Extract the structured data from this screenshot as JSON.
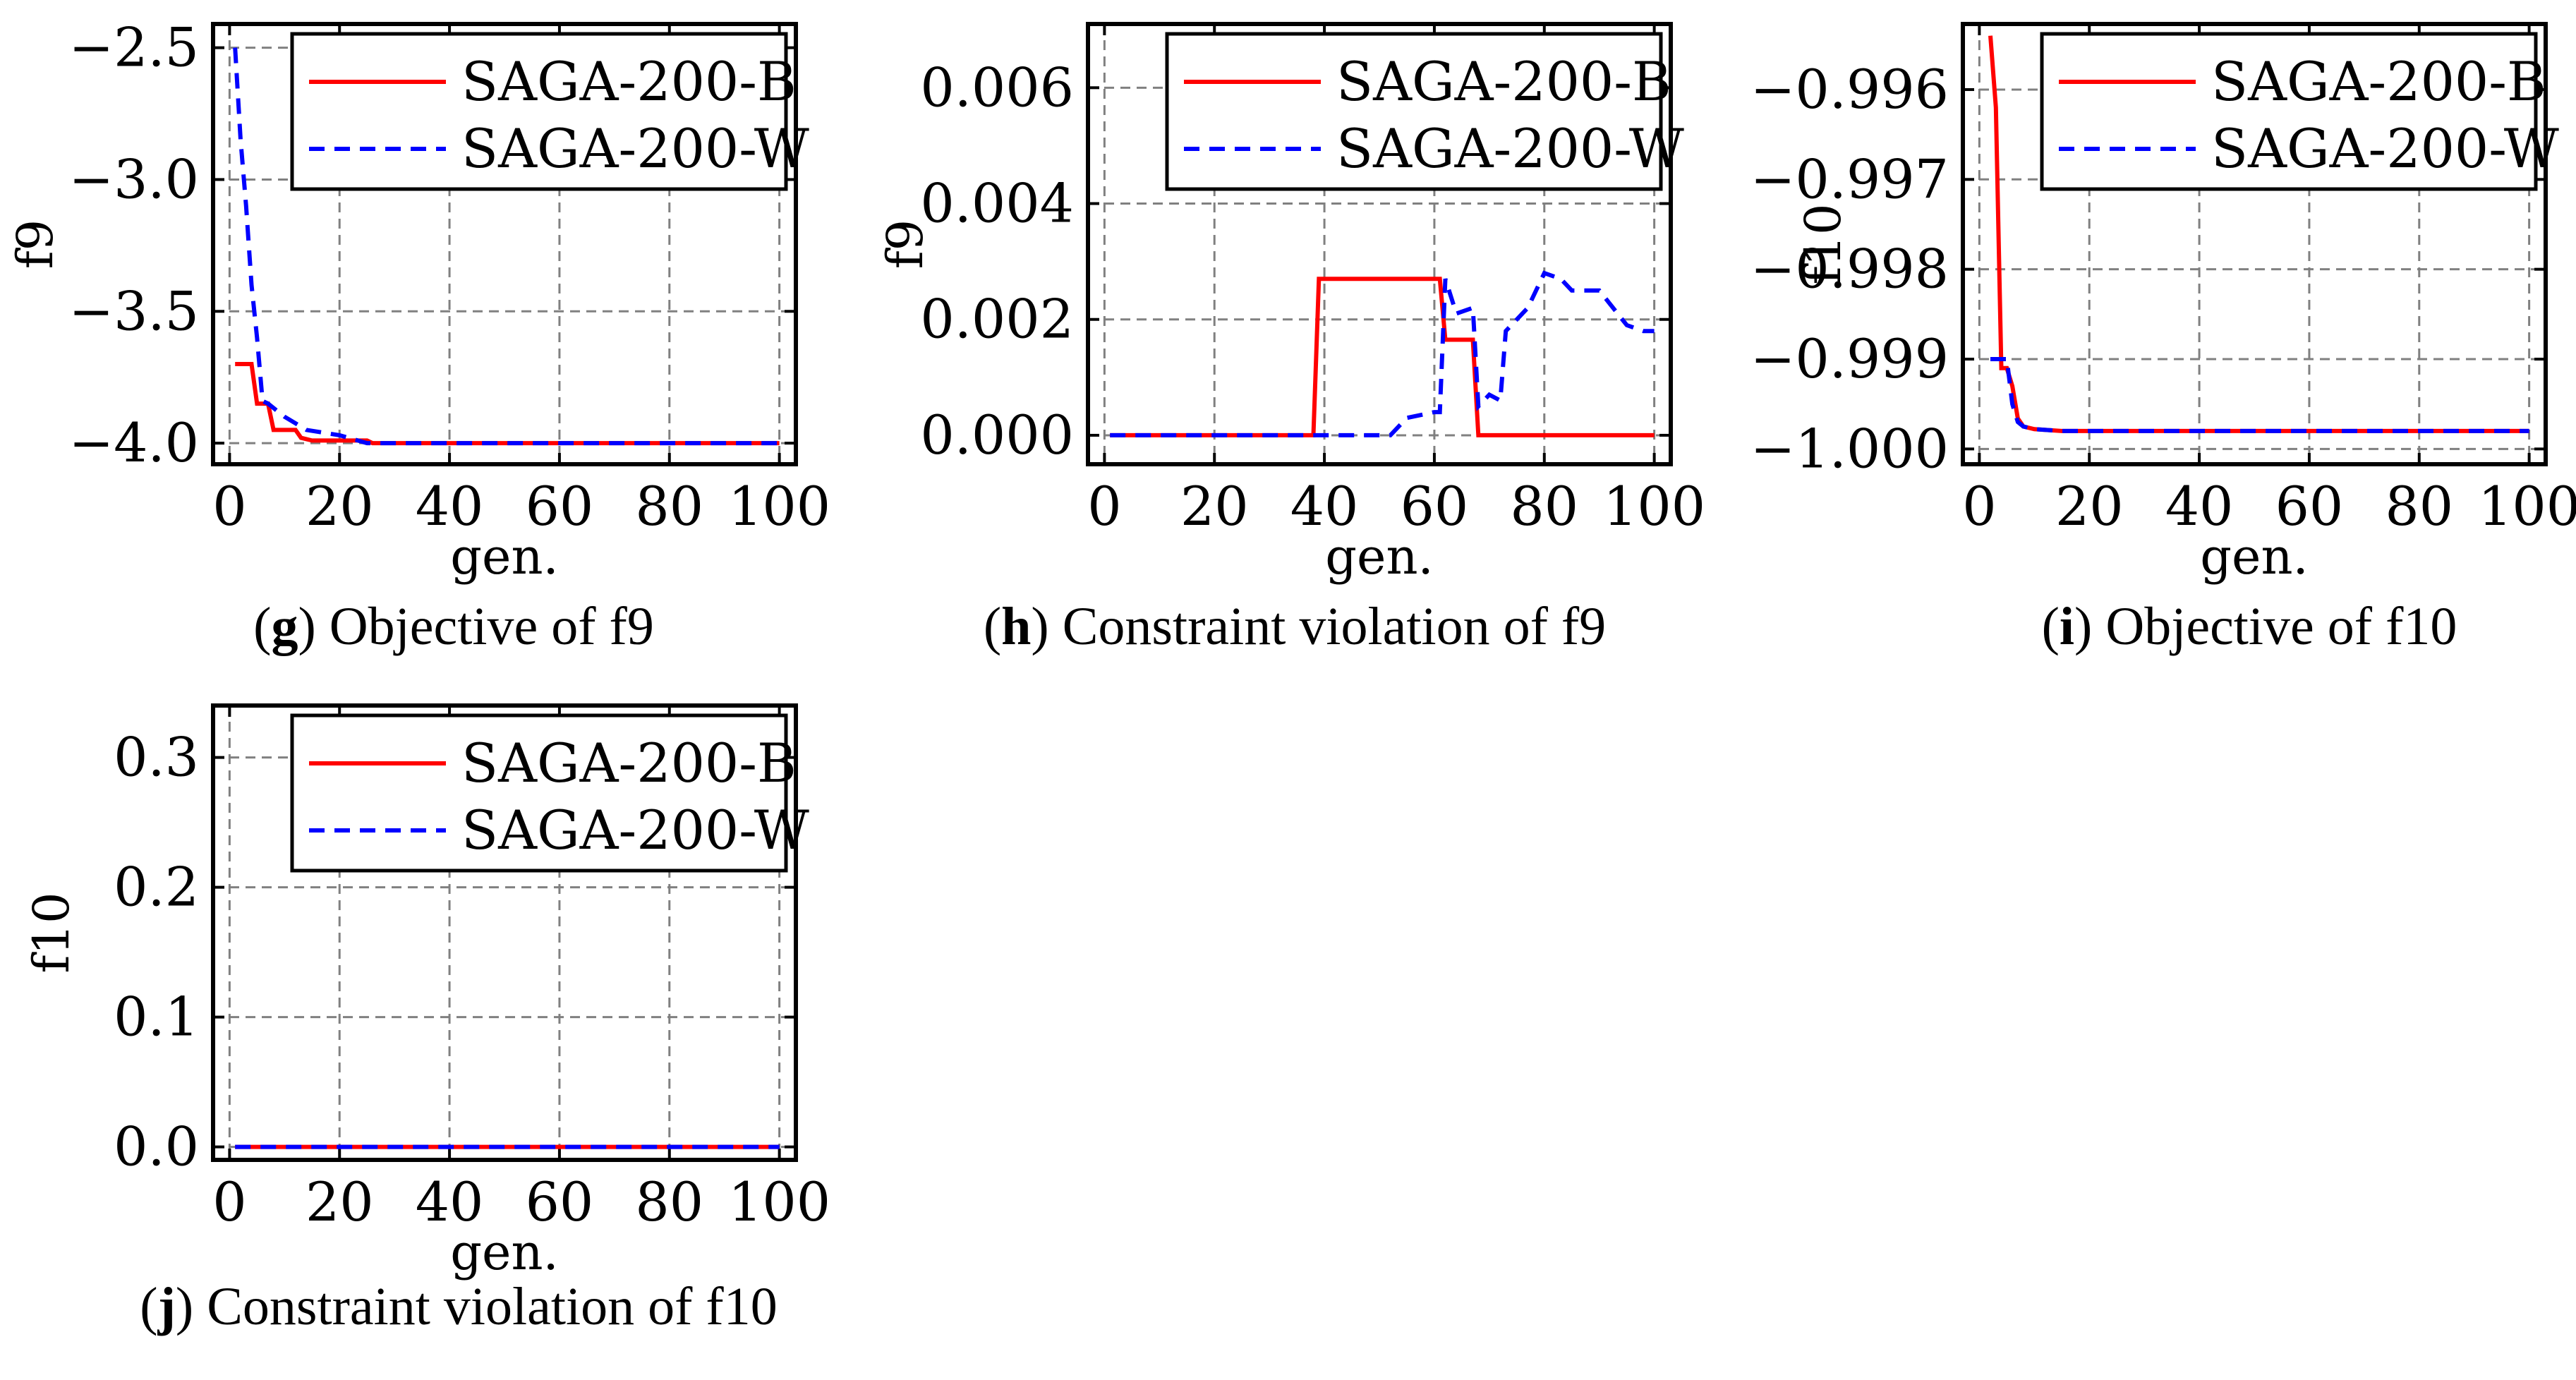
{
  "figure": {
    "panels": [
      {
        "letter": "g",
        "caption": "Objective of f9"
      },
      {
        "letter": "h",
        "caption": "Constraint violation of f9"
      },
      {
        "letter": "i",
        "caption": "Objective of f10"
      },
      {
        "letter": "j",
        "caption": "Constraint violation of f10"
      }
    ]
  },
  "chart_data": [
    {
      "type": "line",
      "title": "",
      "xlabel": "gen.",
      "ylabel": "f9",
      "xlim": [
        -3,
        103
      ],
      "ylim": [
        -4.08,
        -2.41
      ],
      "xticks": [
        0,
        20,
        40,
        60,
        80,
        100
      ],
      "xtick_labels": [
        "0",
        "20",
        "40",
        "60",
        "80",
        "100"
      ],
      "yticks": [
        -2.5,
        -3.0,
        -3.5,
        -4.0
      ],
      "ytick_labels": [
        "−2.5",
        "−3.0",
        "−3.5",
        "−4.0"
      ],
      "grid": true,
      "legend": "top-right",
      "series": [
        {
          "name": "SAGA-200-B",
          "color": "#ff0000",
          "style": "solid",
          "x": [
            1,
            4,
            5,
            7,
            8,
            12,
            13,
            15,
            25,
            26,
            100
          ],
          "y": [
            -3.7,
            -3.7,
            -3.85,
            -3.85,
            -3.95,
            -3.95,
            -3.98,
            -3.99,
            -3.99,
            -4.0,
            -4.0
          ]
        },
        {
          "name": "SAGA-200-W",
          "color": "#0000ff",
          "style": "dashed",
          "x": [
            1,
            2,
            3,
            4,
            5,
            6,
            7,
            10,
            14,
            20,
            25,
            100
          ],
          "y": [
            -2.5,
            -2.85,
            -3.1,
            -3.4,
            -3.6,
            -3.84,
            -3.85,
            -3.9,
            -3.95,
            -3.97,
            -4.0,
            -4.0
          ]
        }
      ]
    },
    {
      "type": "line",
      "title": "",
      "xlabel": "gen.",
      "ylabel": "f9",
      "xlim": [
        -3,
        103
      ],
      "ylim": [
        -0.0005,
        0.0071
      ],
      "xticks": [
        0,
        20,
        40,
        60,
        80,
        100
      ],
      "xtick_labels": [
        "0",
        "20",
        "40",
        "60",
        "80",
        "100"
      ],
      "yticks": [
        0.0,
        0.002,
        0.004,
        0.006
      ],
      "ytick_labels": [
        "0.000",
        "0.002",
        "0.004",
        "0.006"
      ],
      "grid": true,
      "legend": "top-right",
      "series": [
        {
          "name": "SAGA-200-B",
          "color": "#ff0000",
          "style": "solid",
          "x": [
            1,
            38,
            39,
            61,
            62,
            67,
            68,
            100
          ],
          "y": [
            0,
            0,
            0.0027,
            0.0027,
            0.00165,
            0.00165,
            0,
            0
          ]
        },
        {
          "name": "SAGA-200-W",
          "color": "#0000ff",
          "style": "dashed",
          "x": [
            1,
            52,
            55,
            60,
            61,
            62,
            64,
            67,
            68,
            70,
            72,
            73,
            77,
            80,
            83,
            85,
            90,
            95,
            98,
            100
          ],
          "y": [
            0,
            0,
            0.0003,
            0.0004,
            0.0004,
            0.0027,
            0.0021,
            0.0022,
            0.0005,
            0.0007,
            0.0006,
            0.0018,
            0.0022,
            0.0028,
            0.0027,
            0.0025,
            0.0025,
            0.0019,
            0.0018,
            0.0018
          ]
        }
      ]
    },
    {
      "type": "line",
      "title": "",
      "xlabel": "gen.",
      "ylabel": "f10",
      "xlim": [
        -3,
        103
      ],
      "ylim": [
        -1.00017,
        -0.99527
      ],
      "xticks": [
        0,
        20,
        40,
        60,
        80,
        100
      ],
      "xtick_labels": [
        "0",
        "20",
        "40",
        "60",
        "80",
        "100"
      ],
      "yticks": [
        -0.996,
        -0.997,
        -0.998,
        -0.999,
        -1.0
      ],
      "ytick_labels": [
        "−0.996",
        "−0.997",
        "−0.998",
        "−0.999",
        "−1.000"
      ],
      "grid": true,
      "legend": "top-right",
      "series": [
        {
          "name": "SAGA-200-B",
          "color": "#ff0000",
          "style": "solid",
          "x": [
            2,
            3,
            4,
            5,
            6,
            7,
            8,
            10,
            15,
            100
          ],
          "y": [
            -0.9954,
            -0.9962,
            -0.9991,
            -0.9991,
            -0.9993,
            -0.99966,
            -0.99975,
            -0.99978,
            -0.9998,
            -0.9998
          ]
        },
        {
          "name": "SAGA-200-W",
          "color": "#0000ff",
          "style": "dashed",
          "x": [
            2,
            5,
            6,
            7,
            8,
            10,
            15,
            100
          ],
          "y": [
            -0.999,
            -0.999,
            -0.9995,
            -0.9997,
            -0.99975,
            -0.99978,
            -0.9998,
            -0.9998
          ]
        }
      ]
    },
    {
      "type": "line",
      "title": "",
      "xlabel": "gen.",
      "ylabel": "f10",
      "xlim": [
        -3,
        103
      ],
      "ylim": [
        -0.01,
        0.34
      ],
      "xticks": [
        0,
        20,
        40,
        60,
        80,
        100
      ],
      "xtick_labels": [
        "0",
        "20",
        "40",
        "60",
        "80",
        "100"
      ],
      "yticks": [
        0.0,
        0.1,
        0.2,
        0.3
      ],
      "ytick_labels": [
        "0.0",
        "0.1",
        "0.2",
        "0.3"
      ],
      "grid": true,
      "legend": "top-right",
      "series": [
        {
          "name": "SAGA-200-B",
          "color": "#ff0000",
          "style": "solid",
          "x": [
            1,
            100
          ],
          "y": [
            0,
            0
          ]
        },
        {
          "name": "SAGA-200-W",
          "color": "#0000ff",
          "style": "dashed",
          "x": [
            1,
            100
          ],
          "y": [
            0,
            0
          ]
        }
      ]
    }
  ]
}
